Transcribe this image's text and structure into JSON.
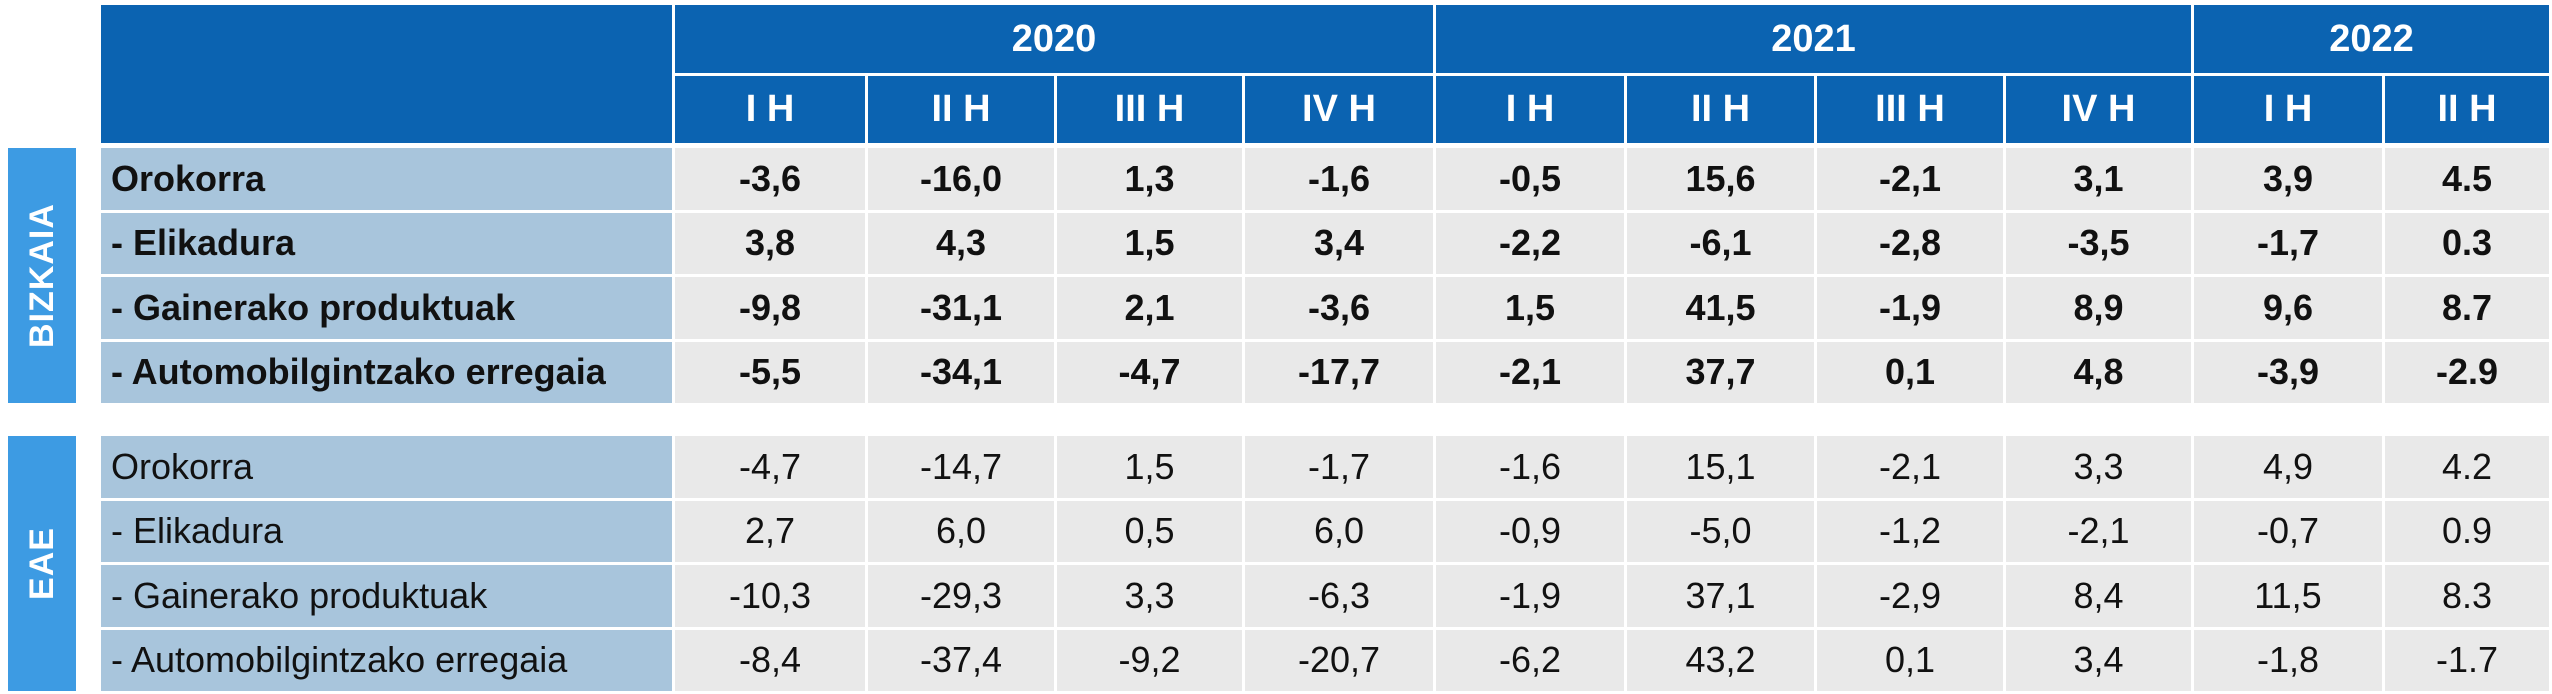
{
  "header": {
    "years": [
      {
        "year": "2020",
        "halves": [
          "I H",
          "II H",
          "III H",
          "IV H"
        ]
      },
      {
        "year": "2021",
        "halves": [
          "I H",
          "II H",
          "III H",
          "IV H"
        ]
      },
      {
        "year": "2022",
        "halves": [
          "I H",
          "II H"
        ]
      }
    ]
  },
  "sections": [
    {
      "label": "BIZKAIA",
      "rows": [
        {
          "label": "Orokorra",
          "values": [
            "-3,6",
            "-16,0",
            "1,3",
            "-1,6",
            "-0,5",
            "15,6",
            "-2,1",
            "3,1",
            "3,9",
            "4.5"
          ]
        },
        {
          "label": "- Elikadura",
          "values": [
            "3,8",
            "4,3",
            "1,5",
            "3,4",
            "-2,2",
            "-6,1",
            "-2,8",
            "-3,5",
            "-1,7",
            "0.3"
          ]
        },
        {
          "label": "- Gainerako produktuak",
          "values": [
            "-9,8",
            "-31,1",
            "2,1",
            "-3,6",
            "1,5",
            "41,5",
            "-1,9",
            "8,9",
            "9,6",
            "8.7"
          ]
        },
        {
          "label": "- Automobilgintzako erregaia",
          "values": [
            "-5,5",
            "-34,1",
            "-4,7",
            "-17,7",
            "-2,1",
            "37,7",
            "0,1",
            "4,8",
            "-3,9",
            "-2.9"
          ]
        }
      ]
    },
    {
      "label": "EAE",
      "rows": [
        {
          "label": "Orokorra",
          "values": [
            "-4,7",
            "-14,7",
            "1,5",
            "-1,7",
            "-1,6",
            "15,1",
            "-2,1",
            "3,3",
            "4,9",
            "4.2"
          ]
        },
        {
          "label": "- Elikadura",
          "values": [
            "2,7",
            "6,0",
            "0,5",
            "6,0",
            "-0,9",
            "-5,0",
            "-1,2",
            "-2,1",
            "-0,7",
            "0.9"
          ]
        },
        {
          "label": "- Gainerako produktuak",
          "values": [
            "-10,3",
            "-29,3",
            "3,3",
            "-6,3",
            "-1,9",
            "37,1",
            "-2,9",
            "8,4",
            "11,5",
            "8.3"
          ]
        },
        {
          "label": "- Automobilgintzako erregaia",
          "values": [
            "-8,4",
            "-37,4",
            "-9,2",
            "-20,7",
            "-6,2",
            "43,2",
            "0,1",
            "3,4",
            "-1,8",
            "-1.7"
          ]
        }
      ]
    }
  ]
}
